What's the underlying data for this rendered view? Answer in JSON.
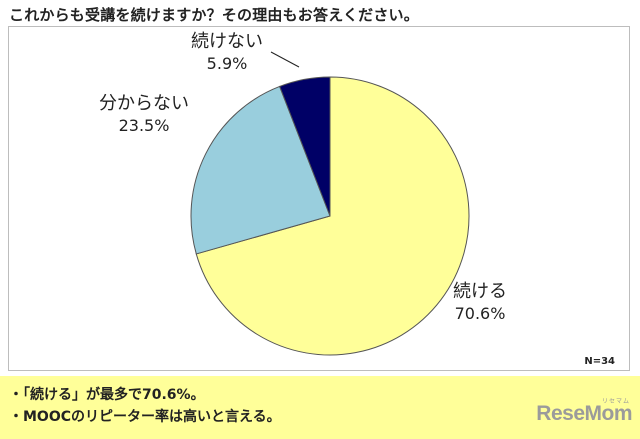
{
  "title": "これからも受講を続けますか？その理由もお答えください。",
  "chart_data": {
    "type": "pie",
    "slices": [
      {
        "name": "続ける",
        "value": 70.6,
        "label": "70.6%",
        "color": "#ffff99"
      },
      {
        "name": "分からない",
        "value": 23.5,
        "label": "23.5%",
        "color": "#99cedd"
      },
      {
        "name": "続けない",
        "value": 5.9,
        "label": "5.9%",
        "color": "#000066"
      }
    ],
    "sample_size": "N=34"
  },
  "summary": {
    "lines": [
      "・「続ける」が最多で70.6%。",
      "・MOOCのリピーター率は高いと言える。"
    ]
  },
  "logo": {
    "text": "ReseMom",
    "kana": "リセマム"
  }
}
